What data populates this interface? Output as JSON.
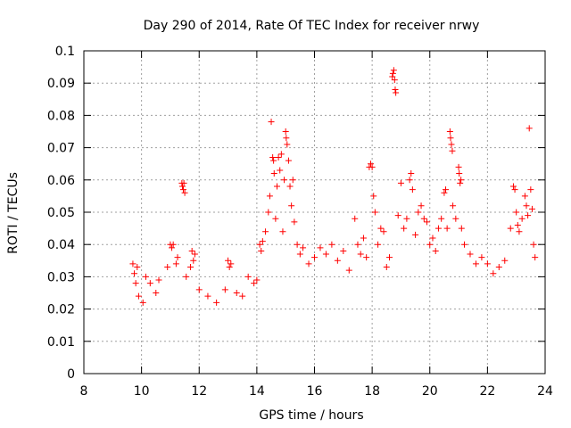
{
  "chart_data": {
    "type": "scatter",
    "title": "Day 290 of 2014, Rate Of TEC Index for receiver nrwy",
    "xlabel": "GPS time / hours",
    "ylabel": "ROTI / TECUs",
    "xlim": [
      8,
      24
    ],
    "ylim": [
      0,
      0.1
    ],
    "x_ticks": [
      8,
      10,
      12,
      14,
      16,
      18,
      20,
      22,
      24
    ],
    "x_tick_labels": [
      "8",
      "10",
      "12",
      "14",
      "16",
      "18",
      "20",
      "22",
      "24"
    ],
    "y_ticks": [
      0,
      0.01,
      0.02,
      0.03,
      0.04,
      0.05,
      0.06,
      0.07,
      0.08,
      0.09,
      0.1
    ],
    "y_tick_labels": [
      "0",
      "0.01",
      "0.02",
      "0.03",
      "0.04",
      "0.05",
      "0.06",
      "0.07",
      "0.08",
      "0.09",
      "0.1"
    ],
    "grid": true,
    "marker": "+",
    "color": "#ff0000",
    "series": [
      {
        "name": "ROTI",
        "points": [
          [
            9.7,
            0.034
          ],
          [
            9.75,
            0.031
          ],
          [
            9.8,
            0.028
          ],
          [
            9.85,
            0.033
          ],
          [
            9.9,
            0.024
          ],
          [
            10.05,
            0.022
          ],
          [
            10.15,
            0.03
          ],
          [
            10.3,
            0.028
          ],
          [
            10.5,
            0.025
          ],
          [
            10.6,
            0.029
          ],
          [
            10.9,
            0.033
          ],
          [
            11.0,
            0.04
          ],
          [
            11.05,
            0.039
          ],
          [
            11.1,
            0.04
          ],
          [
            11.2,
            0.034
          ],
          [
            11.25,
            0.036
          ],
          [
            11.4,
            0.059
          ],
          [
            11.42,
            0.058
          ],
          [
            11.45,
            0.057
          ],
          [
            11.47,
            0.059
          ],
          [
            11.5,
            0.056
          ],
          [
            11.55,
            0.03
          ],
          [
            11.7,
            0.033
          ],
          [
            11.75,
            0.038
          ],
          [
            11.8,
            0.035
          ],
          [
            11.85,
            0.037
          ],
          [
            12.0,
            0.026
          ],
          [
            12.3,
            0.024
          ],
          [
            12.6,
            0.022
          ],
          [
            12.9,
            0.026
          ],
          [
            13.0,
            0.035
          ],
          [
            13.05,
            0.033
          ],
          [
            13.1,
            0.034
          ],
          [
            13.3,
            0.025
          ],
          [
            13.5,
            0.024
          ],
          [
            13.7,
            0.03
          ],
          [
            13.9,
            0.028
          ],
          [
            14.0,
            0.029
          ],
          [
            14.1,
            0.04
          ],
          [
            14.15,
            0.038
          ],
          [
            14.2,
            0.041
          ],
          [
            14.3,
            0.044
          ],
          [
            14.4,
            0.05
          ],
          [
            14.45,
            0.055
          ],
          [
            14.5,
            0.078
          ],
          [
            14.55,
            0.067
          ],
          [
            14.58,
            0.066
          ],
          [
            14.6,
            0.062
          ],
          [
            14.65,
            0.048
          ],
          [
            14.7,
            0.058
          ],
          [
            14.75,
            0.067
          ],
          [
            14.8,
            0.063
          ],
          [
            14.85,
            0.068
          ],
          [
            14.9,
            0.044
          ],
          [
            14.95,
            0.06
          ],
          [
            15.0,
            0.075
          ],
          [
            15.02,
            0.073
          ],
          [
            15.05,
            0.071
          ],
          [
            15.1,
            0.066
          ],
          [
            15.15,
            0.058
          ],
          [
            15.2,
            0.052
          ],
          [
            15.25,
            0.06
          ],
          [
            15.3,
            0.047
          ],
          [
            15.4,
            0.04
          ],
          [
            15.5,
            0.037
          ],
          [
            15.6,
            0.039
          ],
          [
            15.8,
            0.034
          ],
          [
            16.0,
            0.036
          ],
          [
            16.2,
            0.039
          ],
          [
            16.4,
            0.037
          ],
          [
            16.6,
            0.04
          ],
          [
            16.8,
            0.035
          ],
          [
            17.0,
            0.038
          ],
          [
            17.2,
            0.032
          ],
          [
            17.4,
            0.048
          ],
          [
            17.5,
            0.04
          ],
          [
            17.6,
            0.037
          ],
          [
            17.7,
            0.042
          ],
          [
            17.8,
            0.036
          ],
          [
            17.9,
            0.064
          ],
          [
            17.95,
            0.065
          ],
          [
            18.0,
            0.064
          ],
          [
            18.05,
            0.055
          ],
          [
            18.1,
            0.05
          ],
          [
            18.2,
            0.04
          ],
          [
            18.3,
            0.045
          ],
          [
            18.4,
            0.044
          ],
          [
            18.5,
            0.033
          ],
          [
            18.6,
            0.036
          ],
          [
            18.7,
            0.092
          ],
          [
            18.72,
            0.093
          ],
          [
            18.75,
            0.094
          ],
          [
            18.78,
            0.091
          ],
          [
            18.8,
            0.088
          ],
          [
            18.82,
            0.087
          ],
          [
            18.9,
            0.049
          ],
          [
            19.0,
            0.059
          ],
          [
            19.1,
            0.045
          ],
          [
            19.2,
            0.048
          ],
          [
            19.3,
            0.06
          ],
          [
            19.35,
            0.062
          ],
          [
            19.4,
            0.057
          ],
          [
            19.5,
            0.043
          ],
          [
            19.6,
            0.05
          ],
          [
            19.7,
            0.052
          ],
          [
            19.8,
            0.048
          ],
          [
            19.9,
            0.047
          ],
          [
            20.0,
            0.04
          ],
          [
            20.1,
            0.042
          ],
          [
            20.2,
            0.038
          ],
          [
            20.3,
            0.045
          ],
          [
            20.4,
            0.048
          ],
          [
            20.5,
            0.056
          ],
          [
            20.55,
            0.057
          ],
          [
            20.6,
            0.045
          ],
          [
            20.7,
            0.075
          ],
          [
            20.72,
            0.073
          ],
          [
            20.75,
            0.071
          ],
          [
            20.78,
            0.069
          ],
          [
            20.8,
            0.052
          ],
          [
            20.9,
            0.048
          ],
          [
            21.0,
            0.064
          ],
          [
            21.02,
            0.062
          ],
          [
            21.05,
            0.059
          ],
          [
            21.08,
            0.06
          ],
          [
            21.1,
            0.045
          ],
          [
            21.2,
            0.04
          ],
          [
            21.4,
            0.037
          ],
          [
            21.6,
            0.034
          ],
          [
            21.8,
            0.036
          ],
          [
            22.0,
            0.034
          ],
          [
            22.2,
            0.031
          ],
          [
            22.4,
            0.033
          ],
          [
            22.6,
            0.035
          ],
          [
            22.8,
            0.045
          ],
          [
            22.9,
            0.058
          ],
          [
            22.95,
            0.057
          ],
          [
            23.0,
            0.05
          ],
          [
            23.05,
            0.046
          ],
          [
            23.1,
            0.044
          ],
          [
            23.2,
            0.048
          ],
          [
            23.3,
            0.055
          ],
          [
            23.35,
            0.052
          ],
          [
            23.4,
            0.049
          ],
          [
            23.45,
            0.076
          ],
          [
            23.5,
            0.057
          ],
          [
            23.55,
            0.051
          ],
          [
            23.6,
            0.04
          ],
          [
            23.65,
            0.036
          ]
        ]
      }
    ]
  }
}
